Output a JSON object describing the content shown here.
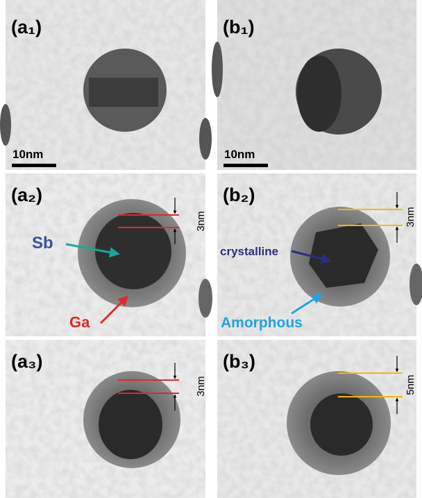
{
  "panels": [
    {
      "label": "(a₁)",
      "scale_bar": "10nm"
    },
    {
      "label": "(b₁)",
      "scale_bar": "10nm"
    },
    {
      "label": "(a₂)",
      "annotations": [
        "Sb",
        "Ga"
      ],
      "thickness": "3nm"
    },
    {
      "label": "(b₂)",
      "annotations": [
        "crystalline",
        "Amorphous"
      ],
      "thickness": "3nm"
    },
    {
      "label": "(a₃)",
      "thickness": "3nm"
    },
    {
      "label": "(b₃)",
      "thickness": "5nm"
    }
  ]
}
